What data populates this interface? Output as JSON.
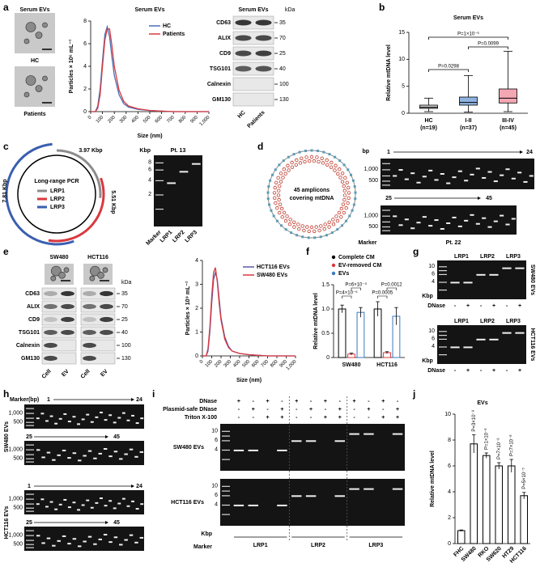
{
  "panel_labels": [
    "a",
    "b",
    "c",
    "d",
    "e",
    "f",
    "g",
    "h",
    "i",
    "j"
  ],
  "a": {
    "em_title": "Serum EVs",
    "em_labels": [
      "HC",
      "Patients"
    ],
    "blot": {
      "title": "Serum EVs",
      "unit": "kDa",
      "proteins": [
        "CD63",
        "ALIX",
        "CD9",
        "TSG101",
        "Calnexin",
        "GM130"
      ],
      "sizes": [
        35,
        70,
        25,
        40,
        100,
        130
      ],
      "lanes": [
        "HC",
        "Patients"
      ]
    }
  },
  "c": {
    "center": "Long-range PCR",
    "primers": [
      "LRP1",
      "LRP2",
      "LRP3"
    ],
    "lengths": [
      "3.97 Kbp",
      "5.51 Kbp",
      "7.81 Kbp"
    ],
    "gel": {
      "unit": "Kbp",
      "title": "Pt. 13",
      "ladder": [
        8,
        6,
        4,
        2
      ],
      "lanes": [
        "Marker",
        "LRP1",
        "LRP2",
        "LRP3"
      ]
    }
  },
  "d": {
    "center": [
      "45 amplicons",
      "covering mtDNA"
    ],
    "unit": "bp",
    "ranges": [
      [
        1,
        24
      ],
      [
        25,
        45
      ]
    ],
    "ladder": [
      "1,000",
      500
    ],
    "marker": "Marker",
    "sample": "Pt. 22"
  },
  "e": {
    "cells": [
      "SW480",
      "HCT116"
    ],
    "unit": "kDa",
    "proteins": [
      "CD63",
      "ALIX",
      "CD9",
      "TSG101",
      "Calnexin",
      "GM130"
    ],
    "sizes": [
      35,
      70,
      25,
      40,
      100,
      130
    ],
    "lanes": [
      "Cell",
      "EV",
      "Cell",
      "EV"
    ]
  },
  "g": {
    "primers": [
      "LRP1",
      "LRP2",
      "LRP3"
    ],
    "ladder": [
      10,
      6,
      4
    ],
    "unit": "Kbp",
    "treatment": "DNase",
    "signs": [
      "-",
      "+",
      "-",
      "+",
      "-",
      "+"
    ],
    "samples": [
      "SW480 EVs",
      "HCT116 EVs"
    ]
  },
  "h": {
    "marker": "Marker(bp)",
    "ladder": [
      "1,000",
      500
    ],
    "ranges": [
      [
        1,
        24
      ],
      [
        25,
        45
      ]
    ],
    "samples": [
      "SW480 EVs",
      "HCT116 EVs"
    ]
  },
  "i": {
    "treatments": [
      "DNase",
      "Plasmid-safe DNase",
      "Triton X-100"
    ],
    "signs": [
      [
        "+",
        "-",
        "+",
        "-",
        "+",
        "-",
        "+",
        "-",
        "+",
        "-",
        "+",
        "-"
      ],
      [
        "-",
        "+",
        "-",
        "+",
        "-",
        "+",
        "-",
        "+",
        "-",
        "+",
        "-",
        "+"
      ],
      [
        "-",
        "-",
        "+",
        "+",
        "-",
        "-",
        "+",
        "+",
        "-",
        "-",
        "+",
        "+"
      ]
    ],
    "ladder": [
      10,
      6,
      4
    ],
    "unit": "Kbp",
    "marker": "Marker",
    "samples": [
      "SW480 EVs",
      "HCT116 EVs"
    ],
    "primers": [
      "LRP1",
      "LRP2",
      "LRP3"
    ]
  },
  "chart_data": [
    {
      "type": "line",
      "title": "Serum EVs",
      "x_label": "Size (nm)",
      "y_label": "Particles × 10⁶ mL⁻¹",
      "x": [
        0,
        40,
        60,
        80,
        100,
        120,
        140,
        160,
        180,
        200,
        240,
        280,
        320,
        400,
        500,
        700,
        1000
      ],
      "xlim": [
        0,
        1000
      ],
      "xticks": [
        0,
        100,
        200,
        300,
        400,
        500,
        600,
        700,
        800,
        900,
        {
          "value": 1000,
          "label": "1,000"
        }
      ],
      "ylim": [
        0,
        8
      ],
      "yticks": [
        0,
        2,
        4,
        6,
        8
      ],
      "series": [
        {
          "name": "HC",
          "color": "#4a6fb5",
          "values": [
            0,
            0,
            0.5,
            2,
            4.5,
            6.8,
            7.5,
            6.6,
            4.8,
            3.2,
            1.5,
            0.7,
            0.4,
            0.2,
            0.1,
            0,
            0
          ]
        },
        {
          "name": "Patients",
          "color": "#d9393f",
          "values": [
            0,
            0,
            0.3,
            1.5,
            4,
            6.3,
            7.3,
            7.3,
            5.8,
            4,
            1.9,
            0.9,
            0.5,
            0.25,
            0.1,
            0,
            0
          ]
        }
      ]
    },
    {
      "type": "box",
      "title": "Serum EVs",
      "y_label": "Relative mtDNA level",
      "categories": [
        "HC",
        "I-II",
        "III-IV"
      ],
      "n_labels": [
        "(n=19)",
        "(n=37)",
        "(n=45)"
      ],
      "colors": [
        "#cfcfcf",
        "#8fb3e0",
        "#f2a7b3"
      ],
      "boxes": [
        {
          "min": 0.3,
          "q1": 0.9,
          "median": 1.1,
          "q3": 1.5,
          "max": 2.8
        },
        {
          "min": 0.2,
          "q1": 1.5,
          "median": 2.0,
          "q3": 3.0,
          "max": 7.0
        },
        {
          "min": 0.3,
          "q1": 1.9,
          "median": 2.8,
          "q3": 4.5,
          "max": 11.5
        }
      ],
      "ylim": [
        0,
        15
      ],
      "yticks": [
        0,
        5,
        10,
        15
      ],
      "annotations": [
        "P=0.0298",
        "P=0.0099",
        "P=1×10⁻⁶"
      ]
    },
    {
      "type": "line",
      "x_label": "Size (nm)",
      "y_label": "Particles × 10⁹ mL⁻¹",
      "x": [
        0,
        40,
        60,
        80,
        100,
        120,
        140,
        160,
        180,
        200,
        240,
        280,
        320,
        400,
        500,
        700,
        1000
      ],
      "xlim": [
        0,
        1000
      ],
      "xticks": [
        0,
        100,
        200,
        300,
        400,
        500,
        600,
        700,
        800,
        900,
        {
          "value": 1000,
          "label": "1,000"
        }
      ],
      "ylim": [
        0,
        4
      ],
      "yticks": [
        0,
        1,
        2,
        3,
        4
      ],
      "series": [
        {
          "name": "HCT116 EVs",
          "color": "#5a5aa8",
          "values": [
            0,
            0,
            0.2,
            1.0,
            2.2,
            3.2,
            3.5,
            3.2,
            2.4,
            1.6,
            0.8,
            0.4,
            0.2,
            0.1,
            0.05,
            0,
            0
          ]
        },
        {
          "name": "SW480 EVs",
          "color": "#d9393f",
          "values": [
            0,
            0,
            0.3,
            1.2,
            2.5,
            3.5,
            3.7,
            3.1,
            2.2,
            1.5,
            0.7,
            0.35,
            0.2,
            0.1,
            0.05,
            0,
            0
          ]
        }
      ]
    },
    {
      "type": "bar",
      "y_label": "Relative mtDNA level",
      "categories": [
        "SW480",
        "HCT116"
      ],
      "series": [
        {
          "name": "Complete CM",
          "color": "#000000",
          "values": [
            1.0,
            1.0
          ],
          "errors": [
            0.08,
            0.15
          ]
        },
        {
          "name": "EV-removed CM",
          "color": "#d9393f",
          "values": [
            0.07,
            0.1
          ],
          "errors": [
            0.02,
            0.02
          ]
        },
        {
          "name": "EVs",
          "color": "#3a78c2",
          "values": [
            0.93,
            0.85
          ],
          "errors": [
            0.1,
            0.18
          ]
        }
      ],
      "ylim": [
        0,
        1.5
      ],
      "yticks": [
        0,
        0.5,
        {
          "value": 1,
          "label": "1.0"
        },
        1.5
      ],
      "annotations": [
        "P=4×10⁻⁵",
        "P=6×10⁻⁵",
        "P=0.0005",
        "P=0.0012"
      ]
    },
    {
      "type": "bar",
      "title": "EVs",
      "y_label": "Relative mtDNA level",
      "categories": [
        "FHC",
        "SW480",
        "RKO",
        "SW620",
        "HT29",
        "HCT116"
      ],
      "values": [
        1.0,
        7.7,
        6.8,
        6.0,
        6.0,
        3.7
      ],
      "errors": [
        0.05,
        0.7,
        0.2,
        0.25,
        0.5,
        0.25
      ],
      "color": "#000000",
      "ylim": [
        0,
        10
      ],
      "yticks": [
        0,
        2,
        4,
        6,
        8,
        10
      ],
      "annotations": [
        null,
        "P=3×10⁻⁸",
        "P=1×10⁻⁸",
        "P=7×10⁻⁸",
        "P=7×10⁻⁸",
        "P=5×10⁻⁵"
      ]
    }
  ]
}
